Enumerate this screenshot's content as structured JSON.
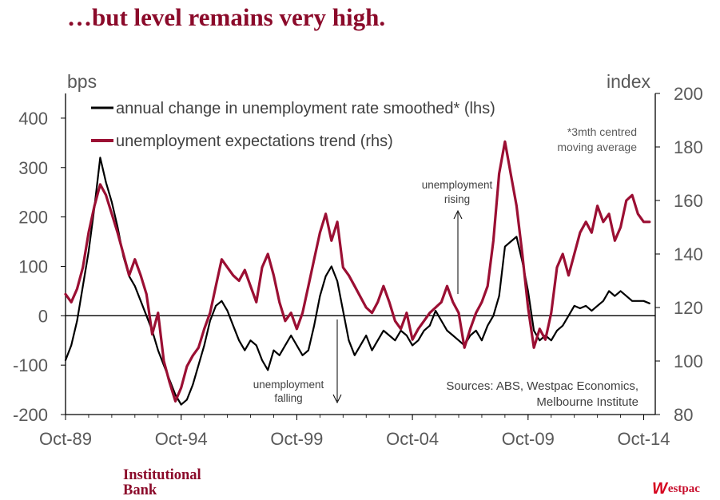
{
  "title": "…but level remains very high.",
  "brand": {
    "left_line1": "Institutional",
    "left_line2": "Bank",
    "right_mark": "W",
    "right_name": "estpac"
  },
  "chart_data": {
    "type": "line",
    "title": "…but level remains very high.",
    "y_left": {
      "label": "bps",
      "min": -200,
      "max": 450,
      "ticks": [
        -200,
        -100,
        0,
        100,
        200,
        300,
        400
      ]
    },
    "y_right": {
      "label": "index",
      "min": 80,
      "max": 200,
      "ticks": [
        80,
        100,
        120,
        140,
        160,
        180,
        200
      ]
    },
    "x_ticks": [
      {
        "label": "Oct-89",
        "t": 1989.75
      },
      {
        "label": "Oct-94",
        "t": 1994.75
      },
      {
        "label": "Oct-99",
        "t": 1999.75
      },
      {
        "label": "Oct-04",
        "t": 2004.75
      },
      {
        "label": "Oct-09",
        "t": 2009.75
      },
      {
        "label": "Oct-14",
        "t": 2014.75
      }
    ],
    "legend": {
      "black": "annual change in unemployment rate smoothed* (lhs)",
      "red": "unemployment expectations trend (rhs)"
    },
    "footnote": [
      "*3mth centred",
      "moving average"
    ],
    "annotations": {
      "rising": [
        "unemployment",
        "rising"
      ],
      "falling": [
        "unemployment",
        "falling"
      ]
    },
    "sources": [
      "Sources: ABS, Westpac Economics,",
      "Melbourne Institute"
    ],
    "series": [
      {
        "name": "annual change in unemployment rate smoothed* (lhs)",
        "axis": "left",
        "color": "#000000",
        "points": [
          [
            1989.75,
            -90
          ],
          [
            1990.0,
            -60
          ],
          [
            1990.25,
            -10
          ],
          [
            1990.5,
            60
          ],
          [
            1990.75,
            130
          ],
          [
            1991.0,
            220
          ],
          [
            1991.25,
            320
          ],
          [
            1991.5,
            270
          ],
          [
            1991.75,
            230
          ],
          [
            1992.0,
            180
          ],
          [
            1992.25,
            120
          ],
          [
            1992.5,
            80
          ],
          [
            1992.75,
            60
          ],
          [
            1993.0,
            30
          ],
          [
            1993.25,
            0
          ],
          [
            1993.5,
            -30
          ],
          [
            1993.75,
            -70
          ],
          [
            1994.0,
            -100
          ],
          [
            1994.25,
            -130
          ],
          [
            1994.5,
            -160
          ],
          [
            1994.75,
            -180
          ],
          [
            1995.0,
            -170
          ],
          [
            1995.25,
            -140
          ],
          [
            1995.5,
            -100
          ],
          [
            1995.75,
            -60
          ],
          [
            1996.0,
            -10
          ],
          [
            1996.25,
            20
          ],
          [
            1996.5,
            30
          ],
          [
            1996.75,
            10
          ],
          [
            1997.0,
            -20
          ],
          [
            1997.25,
            -50
          ],
          [
            1997.5,
            -70
          ],
          [
            1997.75,
            -50
          ],
          [
            1998.0,
            -60
          ],
          [
            1998.25,
            -90
          ],
          [
            1998.5,
            -110
          ],
          [
            1998.75,
            -70
          ],
          [
            1999.0,
            -80
          ],
          [
            1999.25,
            -60
          ],
          [
            1999.5,
            -40
          ],
          [
            1999.75,
            -60
          ],
          [
            2000.0,
            -80
          ],
          [
            2000.25,
            -70
          ],
          [
            2000.5,
            -20
          ],
          [
            2000.75,
            40
          ],
          [
            2001.0,
            80
          ],
          [
            2001.25,
            100
          ],
          [
            2001.5,
            70
          ],
          [
            2001.75,
            10
          ],
          [
            2002.0,
            -50
          ],
          [
            2002.25,
            -80
          ],
          [
            2002.5,
            -60
          ],
          [
            2002.75,
            -40
          ],
          [
            2003.0,
            -70
          ],
          [
            2003.25,
            -50
          ],
          [
            2003.5,
            -30
          ],
          [
            2003.75,
            -40
          ],
          [
            2004.0,
            -50
          ],
          [
            2004.25,
            -30
          ],
          [
            2004.5,
            -40
          ],
          [
            2004.75,
            -60
          ],
          [
            2005.0,
            -50
          ],
          [
            2005.25,
            -30
          ],
          [
            2005.5,
            -20
          ],
          [
            2005.75,
            10
          ],
          [
            2006.0,
            -10
          ],
          [
            2006.25,
            -30
          ],
          [
            2006.5,
            -40
          ],
          [
            2006.75,
            -50
          ],
          [
            2007.0,
            -60
          ],
          [
            2007.25,
            -40
          ],
          [
            2007.5,
            -30
          ],
          [
            2007.75,
            -50
          ],
          [
            2008.0,
            -20
          ],
          [
            2008.25,
            0
          ],
          [
            2008.5,
            40
          ],
          [
            2008.75,
            140
          ],
          [
            2009.0,
            150
          ],
          [
            2009.25,
            160
          ],
          [
            2009.5,
            110
          ],
          [
            2009.75,
            50
          ],
          [
            2010.0,
            -30
          ],
          [
            2010.25,
            -50
          ],
          [
            2010.5,
            -40
          ],
          [
            2010.75,
            -50
          ],
          [
            2011.0,
            -30
          ],
          [
            2011.25,
            -20
          ],
          [
            2011.5,
            0
          ],
          [
            2011.75,
            20
          ],
          [
            2012.0,
            15
          ],
          [
            2012.25,
            20
          ],
          [
            2012.5,
            10
          ],
          [
            2012.75,
            20
          ],
          [
            2013.0,
            30
          ],
          [
            2013.25,
            50
          ],
          [
            2013.5,
            40
          ],
          [
            2013.75,
            50
          ],
          [
            2014.0,
            40
          ],
          [
            2014.25,
            30
          ],
          [
            2014.5,
            30
          ],
          [
            2014.75,
            30
          ],
          [
            2015.0,
            25
          ]
        ]
      },
      {
        "name": "unemployment expectations trend (rhs)",
        "axis": "right",
        "color": "#9b0f33",
        "points": [
          [
            1989.75,
            125
          ],
          [
            1990.0,
            122
          ],
          [
            1990.25,
            127
          ],
          [
            1990.5,
            135
          ],
          [
            1990.75,
            148
          ],
          [
            1991.0,
            158
          ],
          [
            1991.25,
            166
          ],
          [
            1991.5,
            162
          ],
          [
            1991.75,
            155
          ],
          [
            1992.0,
            148
          ],
          [
            1992.25,
            140
          ],
          [
            1992.5,
            132
          ],
          [
            1992.75,
            138
          ],
          [
            1993.0,
            132
          ],
          [
            1993.25,
            125
          ],
          [
            1993.5,
            110
          ],
          [
            1993.75,
            118
          ],
          [
            1994.0,
            100
          ],
          [
            1994.25,
            92
          ],
          [
            1994.5,
            85
          ],
          [
            1994.75,
            90
          ],
          [
            1995.0,
            98
          ],
          [
            1995.25,
            102
          ],
          [
            1995.5,
            105
          ],
          [
            1995.75,
            112
          ],
          [
            1996.0,
            118
          ],
          [
            1996.25,
            128
          ],
          [
            1996.5,
            138
          ],
          [
            1996.75,
            135
          ],
          [
            1997.0,
            132
          ],
          [
            1997.25,
            130
          ],
          [
            1997.5,
            134
          ],
          [
            1997.75,
            128
          ],
          [
            1998.0,
            122
          ],
          [
            1998.25,
            135
          ],
          [
            1998.5,
            140
          ],
          [
            1998.75,
            132
          ],
          [
            1999.0,
            122
          ],
          [
            1999.25,
            115
          ],
          [
            1999.5,
            118
          ],
          [
            1999.75,
            112
          ],
          [
            2000.0,
            118
          ],
          [
            2000.25,
            128
          ],
          [
            2000.5,
            138
          ],
          [
            2000.75,
            148
          ],
          [
            2001.0,
            155
          ],
          [
            2001.25,
            145
          ],
          [
            2001.5,
            152
          ],
          [
            2001.75,
            135
          ],
          [
            2002.0,
            132
          ],
          [
            2002.25,
            128
          ],
          [
            2002.5,
            124
          ],
          [
            2002.75,
            120
          ],
          [
            2003.0,
            118
          ],
          [
            2003.25,
            122
          ],
          [
            2003.5,
            128
          ],
          [
            2003.75,
            122
          ],
          [
            2004.0,
            115
          ],
          [
            2004.25,
            112
          ],
          [
            2004.5,
            118
          ],
          [
            2004.75,
            108
          ],
          [
            2005.0,
            112
          ],
          [
            2005.25,
            115
          ],
          [
            2005.5,
            118
          ],
          [
            2005.75,
            120
          ],
          [
            2006.0,
            122
          ],
          [
            2006.25,
            128
          ],
          [
            2006.5,
            122
          ],
          [
            2006.75,
            118
          ],
          [
            2007.0,
            105
          ],
          [
            2007.25,
            112
          ],
          [
            2007.5,
            118
          ],
          [
            2007.75,
            122
          ],
          [
            2008.0,
            128
          ],
          [
            2008.25,
            145
          ],
          [
            2008.5,
            170
          ],
          [
            2008.75,
            182
          ],
          [
            2009.0,
            170
          ],
          [
            2009.25,
            158
          ],
          [
            2009.5,
            140
          ],
          [
            2009.75,
            120
          ],
          [
            2010.0,
            105
          ],
          [
            2010.25,
            112
          ],
          [
            2010.5,
            108
          ],
          [
            2010.75,
            118
          ],
          [
            2011.0,
            135
          ],
          [
            2011.25,
            140
          ],
          [
            2011.5,
            132
          ],
          [
            2011.75,
            140
          ],
          [
            2012.0,
            148
          ],
          [
            2012.25,
            152
          ],
          [
            2012.5,
            148
          ],
          [
            2012.75,
            158
          ],
          [
            2013.0,
            152
          ],
          [
            2013.25,
            155
          ],
          [
            2013.5,
            145
          ],
          [
            2013.75,
            150
          ],
          [
            2014.0,
            160
          ],
          [
            2014.25,
            162
          ],
          [
            2014.5,
            155
          ],
          [
            2014.75,
            152
          ],
          [
            2015.0,
            152
          ]
        ]
      }
    ]
  }
}
